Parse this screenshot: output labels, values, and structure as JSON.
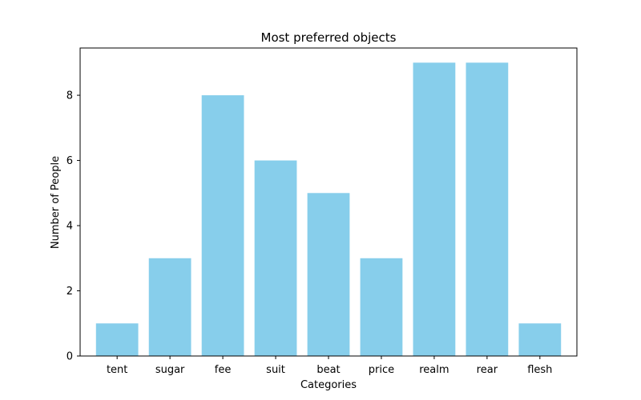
{
  "chart_data": {
    "type": "bar",
    "title": "Most preferred objects",
    "xlabel": "Categories",
    "ylabel": "Number of People",
    "categories": [
      "tent",
      "sugar",
      "fee",
      "suit",
      "beat",
      "price",
      "realm",
      "rear",
      "flesh"
    ],
    "values": [
      1,
      3,
      8,
      6,
      5,
      3,
      9,
      9,
      1
    ],
    "ylim": [
      0,
      9.45
    ],
    "yticks": [
      0,
      2,
      4,
      6,
      8
    ],
    "bar_color": "#87ceeb",
    "grid": false,
    "legend": "none"
  }
}
